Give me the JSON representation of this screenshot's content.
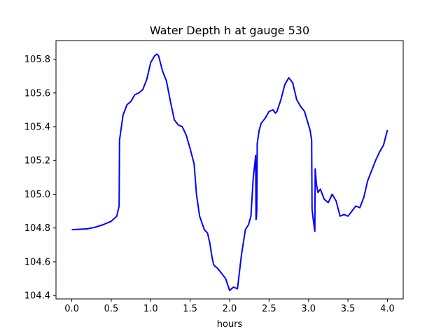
{
  "chart_data": {
    "type": "line",
    "title": "Water Depth h at gauge 530",
    "xlabel": "hours",
    "ylabel": "",
    "xlim": [
      -0.2,
      4.2
    ],
    "ylim": [
      104.38,
      105.91
    ],
    "xticks": [
      0.0,
      0.5,
      1.0,
      1.5,
      2.0,
      2.5,
      3.0,
      3.5,
      4.0
    ],
    "xtick_labels": [
      "0.0",
      "0.5",
      "1.0",
      "1.5",
      "2.0",
      "2.5",
      "3.0",
      "3.5",
      "4.0"
    ],
    "yticks": [
      104.4,
      104.6,
      104.8,
      105.0,
      105.2,
      105.4,
      105.6,
      105.8
    ],
    "ytick_labels": [
      "104.4",
      "104.6",
      "104.8",
      "105.0",
      "105.2",
      "105.4",
      "105.6",
      "105.8"
    ],
    "grid": false,
    "legend": "none",
    "series": [
      {
        "color": "#0000ff",
        "x": [
          0.0,
          0.2,
          0.3,
          0.4,
          0.5,
          0.57,
          0.6,
          0.605,
          0.65,
          0.7,
          0.75,
          0.8,
          0.85,
          0.9,
          0.95,
          1.0,
          1.05,
          1.08,
          1.1,
          1.15,
          1.2,
          1.25,
          1.3,
          1.35,
          1.4,
          1.45,
          1.5,
          1.55,
          1.58,
          1.62,
          1.68,
          1.72,
          1.75,
          1.78,
          1.8,
          1.85,
          1.9,
          1.95,
          2.0,
          2.05,
          2.1,
          2.15,
          2.2,
          2.24,
          2.27,
          2.3,
          2.32,
          2.33,
          2.335,
          2.34,
          2.345,
          2.35,
          2.375,
          2.4,
          2.45,
          2.5,
          2.55,
          2.58,
          2.6,
          2.65,
          2.7,
          2.75,
          2.8,
          2.85,
          2.9,
          2.95,
          3.0,
          3.02,
          3.04,
          3.045,
          3.06,
          3.08,
          3.085,
          3.1,
          3.12,
          3.15,
          3.2,
          3.25,
          3.3,
          3.35,
          3.4,
          3.45,
          3.5,
          3.55,
          3.6,
          3.65,
          3.7,
          3.75,
          3.8,
          3.85,
          3.9,
          3.95,
          4.0
        ],
        "y": [
          104.79,
          104.795,
          104.805,
          104.82,
          104.84,
          104.87,
          104.93,
          105.32,
          105.47,
          105.53,
          105.55,
          105.59,
          105.6,
          105.62,
          105.68,
          105.78,
          105.82,
          105.83,
          105.82,
          105.73,
          105.67,
          105.55,
          105.44,
          105.41,
          105.4,
          105.35,
          105.27,
          105.18,
          105.0,
          104.87,
          104.79,
          104.77,
          104.71,
          104.62,
          104.58,
          104.56,
          104.53,
          104.5,
          104.43,
          104.45,
          104.44,
          104.64,
          104.79,
          104.82,
          104.87,
          105.1,
          105.18,
          105.23,
          104.85,
          104.86,
          104.92,
          105.3,
          105.38,
          105.42,
          105.45,
          105.49,
          105.5,
          105.48,
          105.49,
          105.56,
          105.65,
          105.69,
          105.66,
          105.56,
          105.52,
          105.49,
          105.41,
          105.38,
          105.32,
          104.91,
          104.85,
          104.78,
          105.15,
          105.06,
          105.01,
          105.03,
          104.97,
          104.95,
          105.0,
          104.96,
          104.87,
          104.88,
          104.87,
          104.9,
          104.93,
          104.92,
          104.98,
          105.08,
          105.14,
          105.2,
          105.25,
          105.29,
          105.38
        ]
      }
    ]
  }
}
